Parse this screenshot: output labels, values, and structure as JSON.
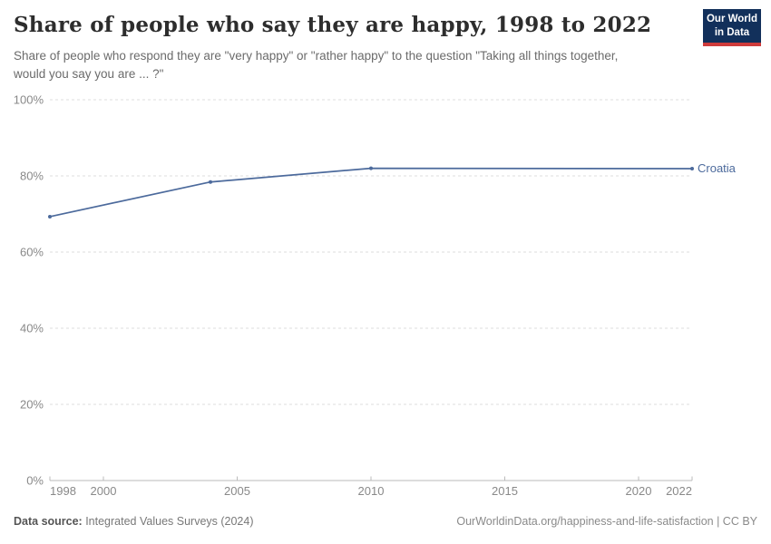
{
  "header": {
    "title": "Share of people who say they are happy, 1998 to 2022",
    "subtitle": "Share of people who respond they are \"very happy\" or \"rather happy\" to the question \"Taking all things together, would you say you are ... ?\"",
    "logo": {
      "line1": "Our World",
      "line2": "in Data",
      "bg": "#12305b",
      "accent": "#cf3b3b"
    }
  },
  "chart_data": {
    "type": "line",
    "title": "Share of people who say they are happy, 1998 to 2022",
    "x": [
      1998,
      2004,
      2010,
      2022
    ],
    "series": [
      {
        "name": "Croatia",
        "color": "#4c6a9c",
        "values": [
          69.3,
          78.4,
          82.0,
          81.9
        ]
      }
    ],
    "xlim": [
      1998,
      2022
    ],
    "ylim": [
      0,
      100
    ],
    "x_ticks": [
      1998,
      2000,
      2005,
      2010,
      2015,
      2020,
      2022
    ],
    "y_ticks": [
      0,
      20,
      40,
      60,
      80,
      100
    ],
    "y_tick_suffix": "%",
    "grid": true,
    "legend_position": "end-of-line",
    "gridline_color": "#dddddd",
    "axis_color": "#bbbbbb",
    "tick_label_color": "#898989"
  },
  "footer": {
    "source_label": "Data source:",
    "source_value": " Integrated Values Surveys (2024)",
    "link": "OurWorldinData.org/happiness-and-life-satisfaction | CC BY"
  }
}
